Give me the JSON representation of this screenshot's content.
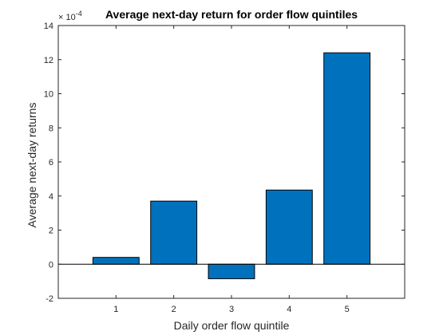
{
  "chart_data": {
    "type": "bar",
    "title": "Average next-day return for order flow quintiles",
    "xlabel": "Daily order flow quintile",
    "ylabel": "Average next-day returns",
    "y_exponent_label": "× 10",
    "y_exponent_power": "-4",
    "categories": [
      "1",
      "2",
      "3",
      "4",
      "5"
    ],
    "values": [
      0.4,
      3.7,
      -0.85,
      4.35,
      12.4
    ],
    "ylim": [
      -2,
      14
    ],
    "xlim": [
      0,
      6
    ],
    "yticks": [
      "-2",
      "0",
      "2",
      "4",
      "6",
      "8",
      "10",
      "12",
      "14"
    ],
    "bar_color": "#0072BD",
    "grid": false,
    "legend": "none"
  }
}
